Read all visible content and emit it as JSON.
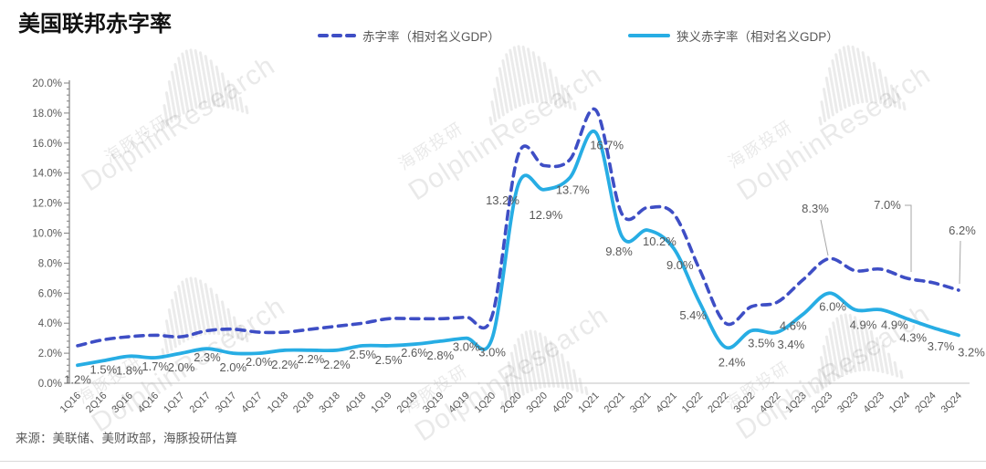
{
  "title": "美国联邦赤字率",
  "source": "来源：美联储、美财政部，海豚投研估算",
  "watermark": {
    "cn": "海豚投研",
    "en": "DolphinResearch"
  },
  "colors": {
    "deficit_line": "#3E4EC5",
    "narrow_deficit_line": "#27ADE4",
    "data_label": "#595959",
    "axis": "#808080",
    "leader_line": "#a6a6a6"
  },
  "legend": [
    {
      "label": "赤字率（相对名义GDP）",
      "style": "dashed"
    },
    {
      "label": "狭义赤字率（相对名义GDP）",
      "style": "solid"
    }
  ],
  "chart_data": {
    "type": "line",
    "categories": [
      "1Q16",
      "2Q16",
      "3Q16",
      "4Q16",
      "1Q17",
      "2Q17",
      "3Q17",
      "4Q17",
      "1Q18",
      "2Q18",
      "3Q18",
      "4Q18",
      "1Q19",
      "2Q19",
      "3Q19",
      "4Q19",
      "1Q20",
      "2Q20",
      "3Q20",
      "4Q20",
      "1Q21",
      "2Q21",
      "3Q21",
      "4Q21",
      "1Q22",
      "2Q22",
      "3Q22",
      "4Q22",
      "1Q23",
      "2Q23",
      "3Q23",
      "4Q23",
      "1Q24",
      "2Q24",
      "3Q24"
    ],
    "series": [
      {
        "name": "赤字率（相对名义GDP）",
        "line": "dashed",
        "color": "#3E4EC5",
        "values": [
          2.5,
          2.9,
          3.1,
          3.2,
          3.1,
          3.5,
          3.6,
          3.4,
          3.4,
          3.6,
          3.8,
          4.0,
          4.3,
          4.3,
          4.3,
          4.4,
          4.5,
          15.2,
          14.5,
          14.9,
          18.2,
          11.3,
          11.7,
          11.3,
          7.6,
          4.0,
          5.1,
          5.4,
          6.9,
          8.3,
          7.5,
          7.6,
          7.0,
          6.7,
          6.2
        ],
        "annotations": [
          {
            "category": "2Q23",
            "label": "8.3%"
          },
          {
            "category": "1Q24",
            "label": "7.0%"
          },
          {
            "category": "3Q24",
            "label": "6.2%"
          }
        ]
      },
      {
        "name": "狭义赤字率（相对名义GDP）",
        "line": "solid",
        "color": "#27ADE4",
        "values": [
          1.2,
          1.5,
          1.8,
          1.7,
          2.0,
          2.3,
          2.0,
          2.0,
          2.2,
          2.2,
          2.2,
          2.5,
          2.5,
          2.6,
          2.8,
          3.0,
          3.0,
          13.2,
          12.9,
          13.7,
          16.7,
          9.8,
          10.2,
          9.0,
          5.4,
          2.4,
          3.5,
          3.4,
          4.6,
          6.0,
          4.9,
          4.9,
          4.3,
          3.7,
          3.2
        ],
        "point_labels": [
          "1.2%",
          "1.5%",
          "1.8%",
          "1.7%",
          "2.0%",
          "2.3%",
          "2.0%",
          "2.0%",
          "2.2%",
          "2.2%",
          "2.2%",
          "2.5%",
          "2.5%",
          "2.6%",
          "2.8%",
          "3.0%",
          "3.0%",
          "13.2%",
          "12.9%",
          "13.7%",
          "16.7%",
          "9.8%",
          "10.2%",
          "9.0%",
          "5.4%",
          "2.4%",
          "3.5%",
          "3.4%",
          "4.6%",
          "6.0%",
          "4.9%",
          "4.9%",
          "4.3%",
          "3.7%",
          "3.2%"
        ]
      }
    ],
    "y_ticks": [
      "0.0%",
      "2.0%",
      "4.0%",
      "6.0%",
      "8.0%",
      "10.0%",
      "12.0%",
      "14.0%",
      "16.0%",
      "18.0%",
      "20.0%"
    ],
    "ylim": [
      0,
      20
    ],
    "grid": false,
    "legend_position": "top"
  }
}
